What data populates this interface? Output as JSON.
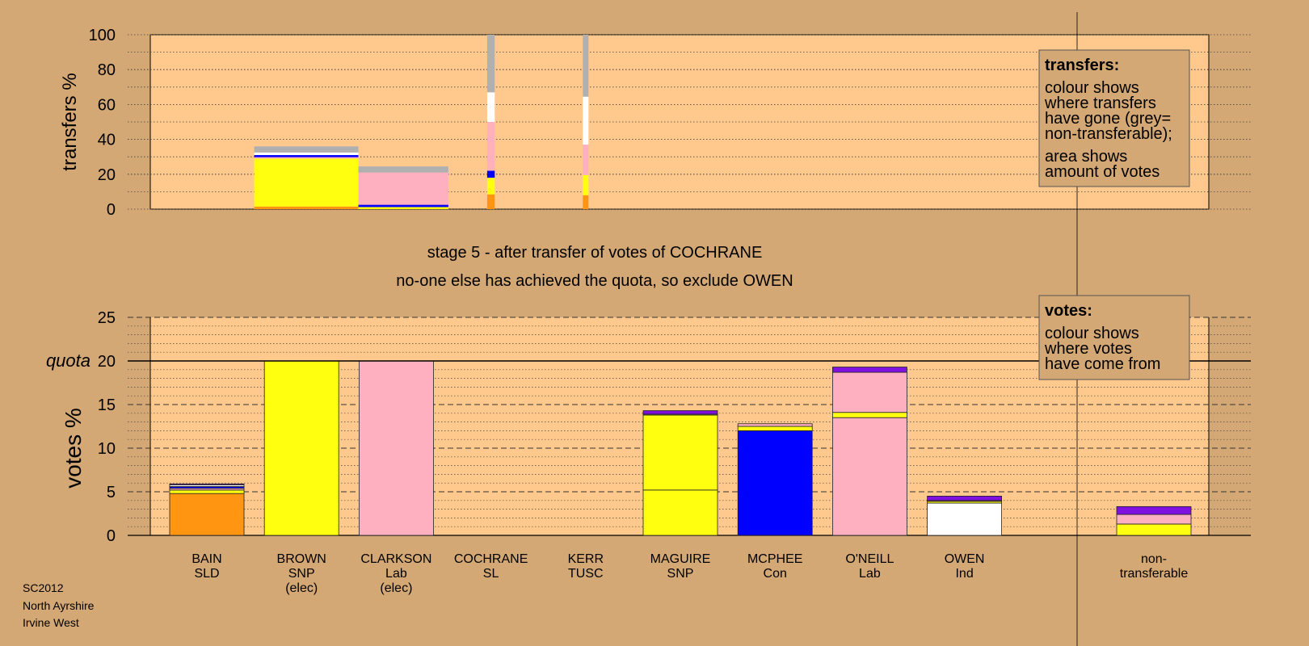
{
  "colors": {
    "background": "#d4a874",
    "plot_bg": "#ffc88c",
    "SLD": "#ff9510",
    "SNP": "#ffff10",
    "Lab": "#ffb0c0",
    "SL": "#ffffff",
    "TUSC": "#ff4040",
    "Con": "#0000ff",
    "Ind": "#ffffff",
    "nontransferable": "#b0b0b0",
    "multi": "#8010e0"
  },
  "titles": {
    "stage": "stage 5 - after transfer of votes of COCHRANE",
    "exclusion": "no-one else has achieved the quota, so exclude OWEN"
  },
  "legends": {
    "transfers": {
      "title": "transfers:",
      "lines1": [
        "colour shows",
        "where transfers",
        "have gone (grey=",
        "non-transferable);"
      ],
      "lines2": [
        "area shows",
        "amount of votes"
      ]
    },
    "votes": {
      "title": "votes:",
      "lines": [
        "colour shows",
        "where votes",
        "have come from"
      ]
    }
  },
  "footer": {
    "line1": "SC2012",
    "line2": "North Ayrshire",
    "line3": "Irvine West"
  },
  "chart_data": [
    {
      "type": "bar",
      "ylabel": "transfers %",
      "ylim": [
        0,
        100
      ],
      "yticks": [
        0,
        20,
        40,
        60,
        80,
        100
      ],
      "grid": true,
      "note": "stacked transfer-destination bars",
      "bars": [
        {
          "x0": 1.5,
          "x1": 2.6,
          "segments": [
            {
              "party": "SLD",
              "value": 1.5
            },
            {
              "party": "SNP",
              "value": 27.5
            },
            {
              "party": "Lab",
              "value": 0.8
            },
            {
              "party": "Con",
              "value": 1.2
            },
            {
              "party": "Ind",
              "value": 1.5
            },
            {
              "party": "nontransferable",
              "value": 3.5
            }
          ]
        },
        {
          "x0": 2.6,
          "x1": 3.55,
          "segments": [
            {
              "party": "SNP",
              "value": 1.2
            },
            {
              "party": "Con",
              "value": 1.3
            },
            {
              "party": "Lab",
              "value": 18.5
            },
            {
              "party": "nontransferable",
              "value": 3.5
            }
          ]
        },
        {
          "x0": 3.96,
          "x1": 4.04,
          "segments": [
            {
              "party": "SLD",
              "value": 8.5
            },
            {
              "party": "SNP",
              "value": 9.5
            },
            {
              "party": "Con",
              "value": 4
            },
            {
              "party": "Lab",
              "value": 28
            },
            {
              "party": "Ind",
              "value": 17
            },
            {
              "party": "nontransferable",
              "value": 33
            }
          ]
        },
        {
          "x0": 4.97,
          "x1": 5.03,
          "segments": [
            {
              "party": "SLD",
              "value": 8
            },
            {
              "party": "SNP",
              "value": 11.5
            },
            {
              "party": "Lab",
              "value": 17.5
            },
            {
              "party": "Ind",
              "value": 27.5
            },
            {
              "party": "nontransferable",
              "value": 35.5
            }
          ]
        }
      ]
    },
    {
      "type": "bar",
      "ylabel": "votes %",
      "ylim": [
        0,
        25
      ],
      "yticks": [
        0,
        5,
        10,
        15,
        20,
        25
      ],
      "quota": 20,
      "quota_label": "quota",
      "grid": true,
      "categories": [
        {
          "lines": [
            "BAIN",
            "SLD"
          ]
        },
        {
          "lines": [
            "BROWN",
            "SNP",
            "(elec)"
          ]
        },
        {
          "lines": [
            "CLARKSON",
            "Lab",
            "(elec)"
          ]
        },
        {
          "lines": [
            "COCHRANE",
            "SL"
          ]
        },
        {
          "lines": [
            "KERR",
            "TUSC"
          ]
        },
        {
          "lines": [
            "MAGUIRE",
            "SNP"
          ]
        },
        {
          "lines": [
            "MCPHEE",
            "Con"
          ]
        },
        {
          "lines": [
            "O'NEILL",
            "Lab"
          ]
        },
        {
          "lines": [
            "OWEN",
            "Ind"
          ]
        },
        {
          "lines": [
            "",
            ""
          ]
        },
        {
          "lines": [
            "non-",
            "transferable"
          ]
        }
      ],
      "stacks": [
        [
          {
            "party": "SLD",
            "value": 4.8
          },
          {
            "party": "SNP",
            "value": 0.4
          },
          {
            "party": "Lab",
            "value": 0.2
          },
          {
            "party": "Con",
            "value": 0.2
          },
          {
            "party": "Ind",
            "value": 0.2
          },
          {
            "party": "multi",
            "value": 0.1
          }
        ],
        [
          {
            "party": "SNP",
            "value": 20
          }
        ],
        [
          {
            "party": "Lab",
            "value": 20
          }
        ],
        [],
        [],
        [
          {
            "party": "SNP",
            "value": 5.2
          },
          {
            "party": "SNP",
            "value": 8.6
          },
          {
            "party": "Lab",
            "value": 0.1
          },
          {
            "party": "multi",
            "value": 0.4
          }
        ],
        [
          {
            "party": "Con",
            "value": 12
          },
          {
            "party": "SNP",
            "value": 0.5
          },
          {
            "party": "Lab",
            "value": 0.3
          }
        ],
        [
          {
            "party": "Lab",
            "value": 13.5
          },
          {
            "party": "SNP",
            "value": 0.6
          },
          {
            "party": "Lab",
            "value": 4.6
          },
          {
            "party": "multi",
            "value": 0.6
          }
        ],
        [
          {
            "party": "Ind",
            "value": 3.7
          },
          {
            "party": "SNP",
            "value": 0.2
          },
          {
            "party": "Lab",
            "value": 0.1
          },
          {
            "party": "multi",
            "value": 0.5
          }
        ],
        [],
        [
          {
            "party": "SNP",
            "value": 1.3
          },
          {
            "party": "Lab",
            "value": 1.1
          },
          {
            "party": "multi",
            "value": 0.9
          }
        ]
      ]
    }
  ]
}
